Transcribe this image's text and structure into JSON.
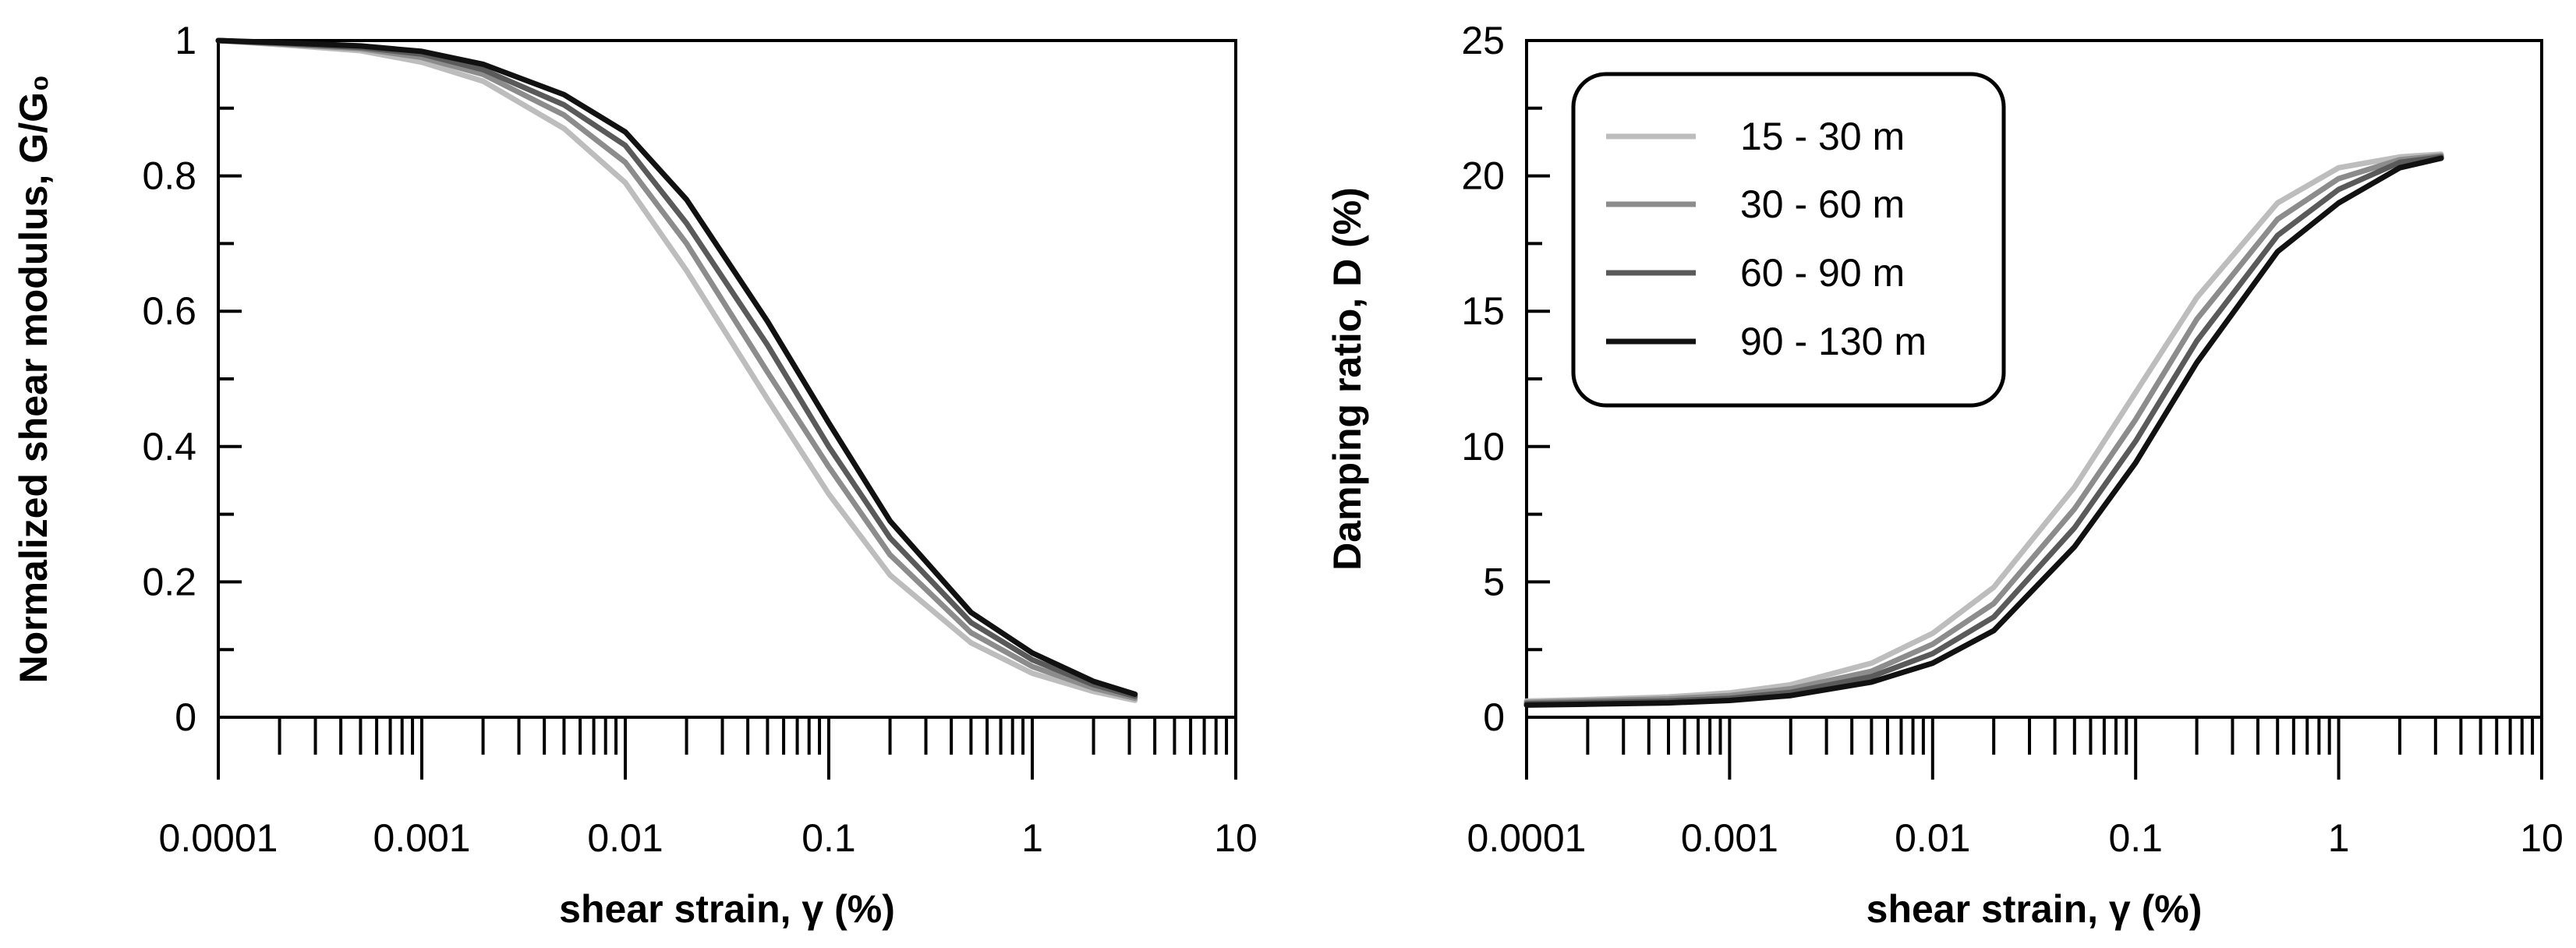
{
  "chart_data": [
    {
      "type": "line",
      "x_scale": "log",
      "title": "",
      "xlabel": "shear strain, γ (%)",
      "ylabel": "Normalized shear modulus, G/G₀",
      "xlim": [
        0.0001,
        10
      ],
      "ylim": [
        0,
        1
      ],
      "x_ticks": [
        0.0001,
        0.001,
        0.01,
        0.1,
        1,
        10
      ],
      "x_tick_labels": [
        "0.0001",
        "0.001",
        "0.01",
        "0.1",
        "1",
        "10"
      ],
      "y_ticks": [
        0,
        0.2,
        0.4,
        0.6,
        0.8,
        1
      ],
      "y_tick_labels": [
        "0",
        "0.2",
        "0.4",
        "0.6",
        "0.8",
        "1"
      ],
      "grid": false,
      "x": [
        0.0001,
        0.0002,
        0.0005,
        0.001,
        0.002,
        0.005,
        0.01,
        0.02,
        0.05,
        0.1,
        0.2,
        0.5,
        1,
        2,
        3.2
      ],
      "series": [
        {
          "name": "15 - 30 m",
          "color": "#bdbdbd",
          "values": [
            1.0,
            0.994,
            0.985,
            0.968,
            0.94,
            0.87,
            0.79,
            0.66,
            0.47,
            0.33,
            0.21,
            0.11,
            0.065,
            0.038,
            0.025
          ]
        },
        {
          "name": "30 - 60 m",
          "color": "#8c8c8c",
          "values": [
            1.0,
            0.995,
            0.988,
            0.975,
            0.95,
            0.89,
            0.82,
            0.7,
            0.51,
            0.37,
            0.24,
            0.125,
            0.075,
            0.043,
            0.028
          ]
        },
        {
          "name": "60 - 90 m",
          "color": "#5a5a5a",
          "values": [
            1.0,
            0.996,
            0.99,
            0.98,
            0.957,
            0.905,
            0.845,
            0.73,
            0.55,
            0.4,
            0.265,
            0.14,
            0.085,
            0.048,
            0.031
          ]
        },
        {
          "name": "90 - 130 m",
          "color": "#111111",
          "values": [
            1.0,
            0.997,
            0.992,
            0.984,
            0.965,
            0.92,
            0.865,
            0.765,
            0.585,
            0.435,
            0.29,
            0.155,
            0.095,
            0.053,
            0.034
          ]
        }
      ]
    },
    {
      "type": "line",
      "x_scale": "log",
      "title": "",
      "xlabel": "shear strain, γ (%)",
      "ylabel": "Damping ratio, D (%)",
      "xlim": [
        0.0001,
        10
      ],
      "ylim": [
        0,
        25
      ],
      "x_ticks": [
        0.0001,
        0.001,
        0.01,
        0.1,
        1,
        10
      ],
      "x_tick_labels": [
        "0.0001",
        "0.001",
        "0.01",
        "0.1",
        "1",
        "10"
      ],
      "y_ticks": [
        0,
        5,
        10,
        15,
        20,
        25
      ],
      "y_tick_labels": [
        "0",
        "5",
        "10",
        "15",
        "20",
        "25"
      ],
      "grid": false,
      "legend": "top-left",
      "x": [
        0.0001,
        0.0002,
        0.0005,
        0.001,
        0.002,
        0.005,
        0.01,
        0.02,
        0.05,
        0.1,
        0.2,
        0.5,
        1,
        2,
        3.2
      ],
      "series": [
        {
          "name": "15 - 30 m",
          "color": "#bdbdbd",
          "values": [
            0.6,
            0.65,
            0.75,
            0.9,
            1.2,
            2.0,
            3.1,
            4.8,
            8.5,
            12.0,
            15.5,
            19.0,
            20.3,
            20.7,
            20.8
          ]
        },
        {
          "name": "30 - 60 m",
          "color": "#8c8c8c",
          "values": [
            0.55,
            0.6,
            0.68,
            0.8,
            1.05,
            1.7,
            2.7,
            4.2,
            7.7,
            11.0,
            14.7,
            18.4,
            19.9,
            20.6,
            20.75
          ]
        },
        {
          "name": "60 - 90 m",
          "color": "#5a5a5a",
          "values": [
            0.5,
            0.54,
            0.6,
            0.7,
            0.92,
            1.5,
            2.35,
            3.7,
            7.0,
            10.2,
            13.9,
            17.8,
            19.5,
            20.5,
            20.7
          ]
        },
        {
          "name": "90 - 130 m",
          "color": "#111111",
          "values": [
            0.45,
            0.48,
            0.53,
            0.62,
            0.8,
            1.3,
            2.0,
            3.2,
            6.3,
            9.4,
            13.1,
            17.2,
            19.0,
            20.3,
            20.65
          ]
        }
      ]
    }
  ]
}
